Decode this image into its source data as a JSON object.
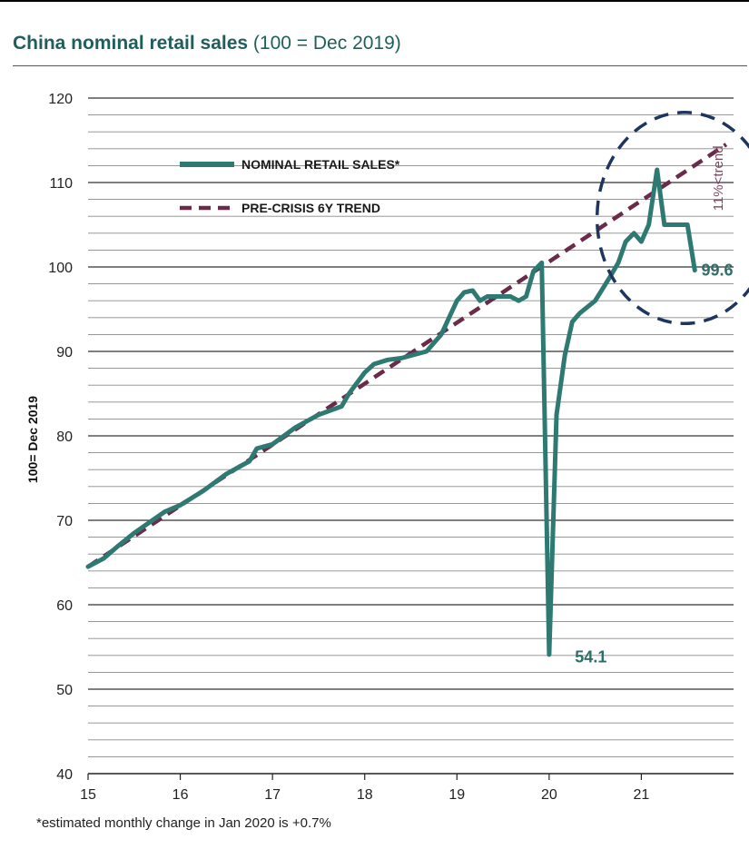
{
  "title": {
    "bold": "China nominal retail sales",
    "rest": " (100 = Dec 2019)"
  },
  "footnote": "*estimated monthly change in Jan 2020 is  +0.7%",
  "colors": {
    "sales": "#2e7a73",
    "trend": "#6b2a4a",
    "circle": "#1e3560",
    "title": "#1f5f5b"
  },
  "chart_data": {
    "type": "line",
    "ylabel": "100= Dec 2019",
    "xlabel": "",
    "xlim": [
      15,
      22
    ],
    "ylim": [
      40,
      120
    ],
    "x_ticks": [
      "15",
      "16",
      "17",
      "18",
      "19",
      "20",
      "21"
    ],
    "y_ticks": [
      "40",
      "50",
      "60",
      "70",
      "80",
      "90",
      "100",
      "110",
      "120"
    ],
    "grid": "horizontal",
    "legend_position": "top-left",
    "series": [
      {
        "name": "NOMINAL RETAIL SALES*",
        "style": "solid",
        "x": [
          15.0,
          15.17,
          15.33,
          15.5,
          15.67,
          15.83,
          16.0,
          16.25,
          16.5,
          16.75,
          16.83,
          17.0,
          17.25,
          17.5,
          17.75,
          17.83,
          18.0,
          18.1,
          18.25,
          18.4,
          18.5,
          18.67,
          18.83,
          19.0,
          19.08,
          19.17,
          19.25,
          19.33,
          19.5,
          19.58,
          19.67,
          19.75,
          19.83,
          19.92,
          20.0,
          20.08,
          20.17,
          20.25,
          20.33,
          20.5,
          20.67,
          20.75,
          20.83,
          20.92,
          21.0,
          21.08,
          21.17,
          21.25,
          21.33,
          21.5,
          21.58
        ],
        "y": [
          64.5,
          65.5,
          67.0,
          68.5,
          69.8,
          71.0,
          71.8,
          73.5,
          75.5,
          77.0,
          78.5,
          79.0,
          81.0,
          82.5,
          83.5,
          85.0,
          87.5,
          88.5,
          89.0,
          89.2,
          89.5,
          90.0,
          92.0,
          96.0,
          97.0,
          97.2,
          96.0,
          96.5,
          96.5,
          96.5,
          96.0,
          96.5,
          99.5,
          100.5,
          54.1,
          82.5,
          89.5,
          93.5,
          94.5,
          96.0,
          99.0,
          100.5,
          103.0,
          104.0,
          103.0,
          105.0,
          111.5,
          105.0,
          105.0,
          105.0,
          99.6
        ]
      },
      {
        "name": "PRE-CRISIS 6Y TREND",
        "style": "dashed",
        "x": [
          15.0,
          21.92
        ],
        "y": [
          64.5,
          114.5
        ]
      }
    ],
    "annotations": [
      {
        "text": "54.1",
        "x": 20.28,
        "y": 53.8
      },
      {
        "text": "99.6",
        "x": 21.65,
        "y": 99.6
      },
      {
        "text": "11%<trend",
        "x": 21.92,
        "y": 110.5,
        "orientation": "vertical"
      }
    ],
    "highlight": {
      "shape": "dashed-circle",
      "center": [
        21.47,
        105.8
      ],
      "radius_x": 0.95,
      "radius_y": 12.5
    }
  }
}
